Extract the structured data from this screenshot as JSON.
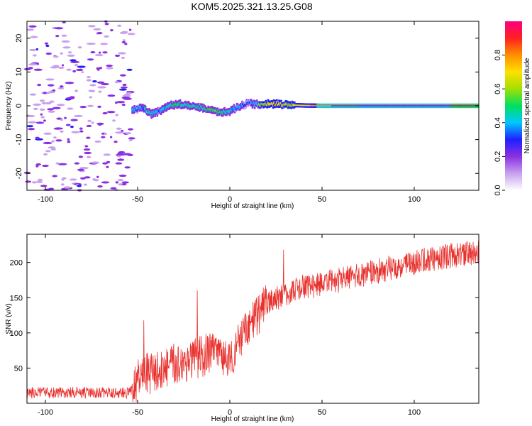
{
  "title": "KOM5.2025.321.13.25.G08",
  "chart_data": [
    {
      "type": "heatmap",
      "name": "spectrogram",
      "xlabel": "Height of straight line (km)",
      "ylabel": "Frequency (Hz)",
      "xlim": [
        -110,
        135
      ],
      "ylim": [
        -25,
        25
      ],
      "xticks": [
        -100,
        -50,
        0,
        50,
        100
      ],
      "yticks": [
        -20,
        -10,
        0,
        10,
        20
      ],
      "colorbar": {
        "label": "Normalized spectral amplitude",
        "ticks": [
          0.0,
          0.2,
          0.4,
          0.6,
          0.8
        ],
        "tick_labels": [
          "0.0",
          "0.2",
          "0.4",
          "0.6",
          "0.8"
        ],
        "range": [
          0,
          1
        ],
        "colors": [
          "#ffffff",
          "#c8a0f0",
          "#8a30e0",
          "#2020ff",
          "#00c8ff",
          "#00e060",
          "#a0e000",
          "#ffe000",
          "#ff9000",
          "#ff2020",
          "#ff0080"
        ]
      },
      "noise_region_x": [
        -110,
        -53
      ],
      "noise_frequency_range": [
        -25,
        25
      ],
      "ridge": {
        "x": [
          -53,
          -47,
          -43,
          -38,
          -33,
          -28,
          -22,
          -16,
          -10,
          -5,
          0,
          5,
          10,
          15,
          20,
          25,
          30,
          40,
          50,
          60,
          70,
          80,
          100,
          120,
          135
        ],
        "frequency": [
          -1.5,
          -0.5,
          -2.5,
          -1.5,
          0,
          0.5,
          0,
          -0.5,
          -1.2,
          -2.0,
          -1.6,
          -0.2,
          0.8,
          0.4,
          0.6,
          0.6,
          0.3,
          0.1,
          0,
          0,
          0,
          0,
          0,
          0,
          0
        ],
        "amplitude": [
          0.3,
          0.4,
          0.45,
          0.35,
          0.45,
          0.5,
          0.45,
          0.45,
          0.5,
          0.5,
          0.45,
          0.35,
          0.3,
          0.45,
          0.65,
          0.7,
          0.6,
          0.72,
          0.8,
          0.9,
          0.95,
          0.97,
          0.98,
          1.0,
          1.0
        ]
      }
    },
    {
      "type": "line",
      "name": "snr",
      "xlabel": "Height of straight line (km)",
      "ylabel": "SNR (v/v)",
      "xlim": [
        -110,
        135
      ],
      "ylim": [
        0,
        240
      ],
      "xticks": [
        -100,
        -50,
        0,
        50,
        100
      ],
      "yticks": [
        50,
        100,
        150,
        200
      ],
      "color": "#e8322e",
      "trend": {
        "x": [
          -110,
          -55,
          -52,
          -48,
          -40,
          -30,
          -20,
          -10,
          0,
          5,
          10,
          15,
          20,
          30,
          40,
          60,
          80,
          100,
          120,
          135
        ],
        "y": [
          15,
          15,
          22,
          40,
          45,
          55,
          62,
          72,
          65,
          85,
          105,
          125,
          142,
          155,
          165,
          175,
          188,
          200,
          210,
          215
        ]
      },
      "noise_amplitude": [
        {
          "x": [
            -110,
            -53
          ],
          "amplitude": 8
        },
        {
          "x": [
            -53,
            20
          ],
          "amplitude": 30
        },
        {
          "x": [
            20,
            135
          ],
          "amplitude": 18
        }
      ]
    }
  ]
}
